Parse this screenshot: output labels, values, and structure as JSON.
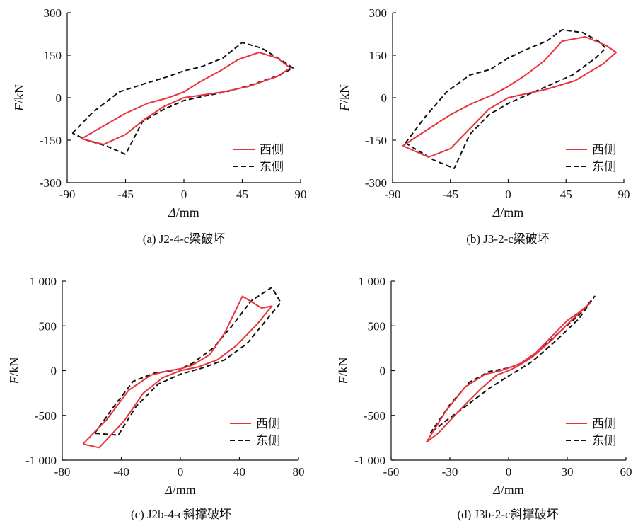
{
  "colors": {
    "west": "#e8333c",
    "east": "#111111"
  },
  "chart_data": [
    {
      "id": "a",
      "type": "line",
      "caption": "(a) J2-4-c梁破坏",
      "ylabel_italic": "F",
      "ylabel_unit": "/kN",
      "xlabel_italic": "Δ",
      "xlabel_unit": "/mm",
      "xlim": [
        -90,
        90
      ],
      "ylim": [
        -300,
        300
      ],
      "xticks": [
        -90,
        -45,
        0,
        45,
        90
      ],
      "yticks": [
        -300,
        -150,
        0,
        150,
        300
      ],
      "ytick_labels": [
        "-300",
        "-150",
        "0",
        "150",
        "300"
      ],
      "legend": [
        "西侧",
        "东侧"
      ],
      "series": [
        {
          "name": "西侧",
          "style": "solid",
          "color": "#e8333c",
          "x": [
            -79,
            -62,
            -45,
            -28,
            -12,
            0,
            12,
            28,
            42,
            58,
            72,
            82,
            72,
            50,
            30,
            15,
            0,
            -15,
            -30,
            -45,
            -62,
            -79
          ],
          "y": [
            -145,
            -100,
            -55,
            -20,
            0,
            20,
            55,
            95,
            135,
            160,
            140,
            105,
            75,
            40,
            20,
            10,
            0,
            -30,
            -75,
            -130,
            -165,
            -145
          ]
        },
        {
          "name": "东侧",
          "style": "dashed",
          "color": "#111111",
          "x": [
            -86,
            -70,
            -50,
            -30,
            -12,
            0,
            14,
            30,
            45,
            60,
            76,
            84,
            74,
            52,
            32,
            15,
            0,
            -15,
            -32,
            -45,
            -60,
            -75,
            -86
          ],
          "y": [
            -125,
            -50,
            20,
            50,
            75,
            95,
            110,
            140,
            195,
            175,
            130,
            105,
            80,
            45,
            20,
            5,
            -10,
            -40,
            -85,
            -200,
            -170,
            -150,
            -125
          ]
        }
      ]
    },
    {
      "id": "b",
      "type": "line",
      "caption": "(b) J3-2-c梁破坏",
      "ylabel_italic": "F",
      "ylabel_unit": "/kN",
      "xlabel_italic": "Δ",
      "xlabel_unit": "/mm",
      "xlim": [
        -90,
        90
      ],
      "ylim": [
        -300,
        300
      ],
      "xticks": [
        -90,
        -45,
        0,
        45,
        90
      ],
      "yticks": [
        -300,
        -150,
        0,
        150,
        300
      ],
      "ytick_labels": [
        "-300",
        "-150",
        "0",
        "150",
        "300"
      ],
      "legend": [
        "西侧",
        "东侧"
      ],
      "series": [
        {
          "name": "西侧",
          "style": "solid",
          "color": "#e8333c",
          "x": [
            -82,
            -62,
            -45,
            -28,
            -12,
            0,
            12,
            28,
            42,
            60,
            76,
            84,
            74,
            52,
            30,
            15,
            0,
            -15,
            -30,
            -45,
            -62,
            -82
          ],
          "y": [
            -170,
            -110,
            -60,
            -20,
            10,
            40,
            75,
            130,
            200,
            215,
            185,
            160,
            120,
            60,
            30,
            15,
            0,
            -40,
            -110,
            -180,
            -210,
            -170
          ]
        },
        {
          "name": "东侧",
          "style": "dashed",
          "color": "#111111",
          "x": [
            -80,
            -65,
            -48,
            -30,
            -14,
            0,
            14,
            30,
            42,
            58,
            70,
            76,
            68,
            50,
            30,
            15,
            0,
            -15,
            -30,
            -42,
            -58,
            -80
          ],
          "y": [
            -160,
            -70,
            20,
            80,
            100,
            140,
            170,
            200,
            240,
            230,
            200,
            175,
            140,
            80,
            40,
            10,
            -20,
            -60,
            -130,
            -250,
            -220,
            -160
          ]
        }
      ]
    },
    {
      "id": "c",
      "type": "line",
      "caption": "(c) J2b-4-c斜撑破坏",
      "ylabel_italic": "F",
      "ylabel_unit": "/kN",
      "xlabel_italic": "Δ",
      "xlabel_unit": "/mm",
      "xlim": [
        -80,
        80
      ],
      "ylim": [
        -1000,
        1000
      ],
      "xticks": [
        -80,
        -40,
        0,
        40,
        80
      ],
      "yticks": [
        -1000,
        -500,
        0,
        500,
        1000
      ],
      "ytick_labels": [
        "-1 000",
        "-500",
        "0",
        "500",
        "1 000"
      ],
      "legend": [
        "西侧",
        "东侧"
      ],
      "series": [
        {
          "name": "西侧",
          "style": "solid",
          "color": "#e8333c",
          "x": [
            -66,
            -50,
            -35,
            -20,
            -8,
            0,
            8,
            20,
            30,
            42,
            55,
            62,
            52,
            38,
            25,
            12,
            0,
            -12,
            -25,
            -38,
            -55,
            -66
          ],
          "y": [
            -820,
            -550,
            -220,
            -50,
            0,
            20,
            60,
            180,
            420,
            830,
            700,
            720,
            520,
            280,
            120,
            40,
            0,
            -80,
            -250,
            -560,
            -860,
            -820
          ]
        },
        {
          "name": "东侧",
          "style": "dashed",
          "color": "#111111",
          "x": [
            -58,
            -45,
            -32,
            -18,
            -6,
            0,
            8,
            22,
            35,
            48,
            62,
            68,
            58,
            45,
            30,
            15,
            0,
            -15,
            -30,
            -42,
            -58
          ],
          "y": [
            -700,
            -400,
            -120,
            -30,
            0,
            20,
            80,
            250,
            500,
            780,
            930,
            760,
            560,
            300,
            120,
            30,
            -40,
            -150,
            -400,
            -720,
            -700
          ]
        }
      ]
    },
    {
      "id": "d",
      "type": "line",
      "caption": "(d) J3b-2-c斜撑破坏",
      "ylabel_italic": "F",
      "ylabel_unit": "/kN",
      "xlabel_italic": "Δ",
      "xlabel_unit": "/mm",
      "xlim": [
        -60,
        60
      ],
      "ylim": [
        -1000,
        1000
      ],
      "xticks": [
        -60,
        -30,
        0,
        30,
        60
      ],
      "yticks": [
        -1000,
        -500,
        0,
        500,
        1000
      ],
      "ytick_labels": [
        "-1 000",
        "-500",
        "0",
        "500",
        "1 000"
      ],
      "legend": [
        "西侧",
        "东侧"
      ],
      "series": [
        {
          "name": "西侧",
          "style": "solid",
          "color": "#e8333c",
          "x": [
            -42,
            -32,
            -22,
            -12,
            -4,
            0,
            6,
            14,
            22,
            30,
            36,
            42,
            32,
            22,
            12,
            4,
            0,
            -6,
            -14,
            -24,
            -36,
            -42
          ],
          "y": [
            -800,
            -450,
            -180,
            -40,
            0,
            30,
            80,
            200,
            380,
            560,
            650,
            760,
            560,
            340,
            150,
            40,
            0,
            -50,
            -200,
            -420,
            -700,
            -800
          ]
        },
        {
          "name": "东侧",
          "style": "dashed",
          "color": "#111111",
          "x": [
            -40,
            -30,
            -20,
            -10,
            0,
            8,
            16,
            26,
            36,
            44,
            36,
            24,
            12,
            0,
            -10,
            -22,
            -32,
            -40
          ],
          "y": [
            -700,
            -380,
            -130,
            -10,
            30,
            90,
            230,
            430,
            620,
            830,
            580,
            330,
            100,
            -60,
            -200,
            -400,
            -560,
            -700
          ]
        }
      ]
    }
  ]
}
